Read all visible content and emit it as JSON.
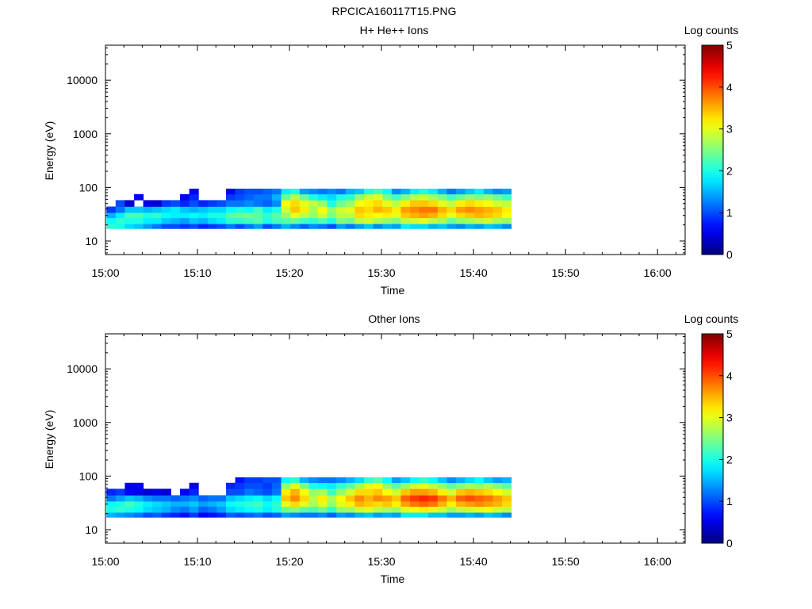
{
  "figure_title": "RPCICA160117T15.PNG",
  "colors": {
    "axis": "#000000",
    "background": "#ffffff"
  },
  "chart_data": [
    {
      "type": "heatmap",
      "title": "H+ He++ Ions",
      "xlabel": "Time",
      "ylabel": "Energy (eV)",
      "x_ticks": [
        "15:00",
        "15:10",
        "15:20",
        "15:30",
        "15:40",
        "15:50",
        "16:00"
      ],
      "x_range_minutes": [
        0,
        63
      ],
      "y_ticks": [
        "10",
        "100",
        "1000",
        "10000"
      ],
      "ylim": [
        5.6,
        45000
      ],
      "y_scale": "log",
      "colorbar": {
        "label": "Log counts",
        "ticks": [
          "0",
          "1",
          "2",
          "3",
          "4",
          "5"
        ],
        "range": [
          0,
          5
        ],
        "colormap": "jet"
      },
      "columns": [
        {
          "t": 0.2,
          "c": [
            2.1,
            1.9,
            1.5,
            0.9
          ]
        },
        {
          "t": 1.2,
          "c": [
            2.0,
            2.1,
            1.8,
            1.2,
            1.0
          ]
        },
        {
          "t": 2.2,
          "c": [
            1.7,
            2.0,
            2.2,
            1.6,
            0.4
          ]
        },
        {
          "t": 3.2,
          "c": [
            1.6,
            2.0,
            2.2,
            1.6,
            0,
            0.6
          ]
        },
        {
          "t": 4.2,
          "c": [
            1.4,
            1.8,
            2.0,
            1.5,
            0.5
          ]
        },
        {
          "t": 5.2,
          "c": [
            1.2,
            1.8,
            2.1,
            1.6,
            0.4
          ]
        },
        {
          "t": 6.2,
          "c": [
            1.0,
            1.6,
            1.9,
            1.7,
            0.9
          ]
        },
        {
          "t": 7.2,
          "c": [
            1.0,
            1.5,
            1.8,
            1.8,
            1.0
          ]
        },
        {
          "t": 8.2,
          "c": [
            0.9,
            1.4,
            1.8,
            1.6,
            0.8,
            0.6
          ]
        },
        {
          "t": 9.2,
          "c": [
            1.0,
            1.6,
            1.9,
            1.5,
            1.0,
            0.8,
            0.6
          ]
        },
        {
          "t": 10.2,
          "c": [
            0.8,
            1.5,
            1.8,
            1.6,
            0.8
          ]
        },
        {
          "t": 11.2,
          "c": [
            0.9,
            1.7,
            2.0,
            1.7,
            0.9
          ]
        },
        {
          "t": 12.2,
          "c": [
            1.0,
            1.8,
            2.0,
            1.7,
            1.0
          ]
        },
        {
          "t": 13.2,
          "c": [
            1.2,
            2.1,
            2.3,
            1.9,
            1.2,
            0.9,
            0.6
          ]
        },
        {
          "t": 14.2,
          "c": [
            1.0,
            2.1,
            2.4,
            2.0,
            1.2,
            1.0,
            0.9
          ]
        },
        {
          "t": 15.2,
          "c": [
            1.2,
            2.2,
            2.4,
            1.9,
            1.3,
            1.1,
            1.0
          ]
        },
        {
          "t": 16.2,
          "c": [
            1.4,
            2.3,
            2.3,
            2.2,
            1.2,
            1.2,
            1.0
          ]
        },
        {
          "t": 17.2,
          "c": [
            1.0,
            2.0,
            2.1,
            1.8,
            1.1,
            1.2,
            1.1
          ]
        },
        {
          "t": 18.2,
          "c": [
            1.2,
            2.2,
            2.3,
            2.0,
            1.3,
            1.5,
            1.2
          ]
        },
        {
          "t": 19.2,
          "c": [
            1.5,
            2.3,
            2.6,
            2.9,
            3.1,
            2.4,
            1.8
          ]
        },
        {
          "t": 20.2,
          "c": [
            1.3,
            2.4,
            3.0,
            3.4,
            3.3,
            2.8,
            2.0
          ]
        },
        {
          "t": 21.2,
          "c": [
            1.1,
            2.2,
            2.8,
            3.2,
            3.0,
            2.4,
            1.4
          ]
        },
        {
          "t": 22.2,
          "c": [
            1.3,
            2.1,
            2.6,
            2.7,
            2.8,
            2.0,
            1.3
          ]
        },
        {
          "t": 23.2,
          "c": [
            1.2,
            2.3,
            2.9,
            3.1,
            2.6,
            1.8,
            1.2
          ]
        },
        {
          "t": 24.2,
          "c": [
            1.0,
            2.0,
            2.5,
            2.6,
            2.0,
            1.7,
            1.3
          ]
        },
        {
          "t": 25.2,
          "c": [
            1.4,
            2.5,
            2.8,
            2.9,
            2.4,
            2.0,
            1.2
          ]
        },
        {
          "t": 26.2,
          "c": [
            1.2,
            2.4,
            2.8,
            3.0,
            2.6,
            2.1,
            1.5
          ]
        },
        {
          "t": 27.2,
          "c": [
            1.4,
            2.8,
            3.3,
            3.4,
            3.1,
            2.6,
            1.6
          ]
        },
        {
          "t": 28.2,
          "c": [
            1.6,
            2.9,
            3.2,
            3.3,
            3.2,
            2.9,
            2.0
          ]
        },
        {
          "t": 29.2,
          "c": [
            1.3,
            2.7,
            3.1,
            3.5,
            3.3,
            3.0,
            2.2
          ]
        },
        {
          "t": 30.2,
          "c": [
            1.5,
            2.6,
            3.2,
            3.4,
            3.0,
            2.5,
            1.9
          ]
        },
        {
          "t": 31.2,
          "c": [
            1.4,
            2.5,
            3.0,
            3.2,
            2.8,
            2.2,
            1.3
          ]
        },
        {
          "t": 32.2,
          "c": [
            1.8,
            2.8,
            3.4,
            3.6,
            3.2,
            2.5,
            1.5
          ]
        },
        {
          "t": 33.2,
          "c": [
            1.7,
            2.9,
            3.5,
            3.7,
            3.4,
            2.8,
            1.8
          ]
        },
        {
          "t": 34.2,
          "c": [
            1.7,
            3.0,
            3.6,
            3.8,
            3.4,
            2.9,
            2.0
          ]
        },
        {
          "t": 35.2,
          "c": [
            1.5,
            2.8,
            3.5,
            3.8,
            3.3,
            2.7,
            1.8
          ]
        },
        {
          "t": 36.2,
          "c": [
            1.6,
            2.7,
            3.3,
            3.5,
            3.0,
            2.5,
            1.5
          ]
        },
        {
          "t": 37.2,
          "c": [
            1.4,
            2.4,
            3.0,
            3.3,
            2.8,
            2.2,
            1.2
          ]
        },
        {
          "t": 38.2,
          "c": [
            1.3,
            2.6,
            3.3,
            3.6,
            3.2,
            2.4,
            1.4
          ]
        },
        {
          "t": 39.2,
          "c": [
            1.5,
            2.7,
            3.4,
            3.7,
            3.3,
            2.6,
            1.6
          ]
        },
        {
          "t": 40.2,
          "c": [
            1.4,
            2.8,
            3.5,
            3.6,
            3.2,
            2.5,
            1.8
          ]
        },
        {
          "t": 41.2,
          "c": [
            1.6,
            2.9,
            3.4,
            3.5,
            3.1,
            2.6,
            1.5
          ]
        },
        {
          "t": 42.2,
          "c": [
            1.5,
            2.7,
            3.3,
            3.4,
            2.9,
            2.4,
            1.3
          ]
        },
        {
          "t": 43.2,
          "c": [
            1.3,
            2.6,
            3.1,
            3.2,
            2.8,
            2.2,
            1.4
          ]
        }
      ]
    },
    {
      "type": "heatmap",
      "title": "Other Ions",
      "xlabel": "Time",
      "ylabel": "Energy (eV)",
      "x_ticks": [
        "15:00",
        "15:10",
        "15:20",
        "15:30",
        "15:40",
        "15:50",
        "16:00"
      ],
      "x_range_minutes": [
        0,
        63
      ],
      "y_ticks": [
        "10",
        "100",
        "1000",
        "10000"
      ],
      "ylim": [
        5.6,
        45000
      ],
      "y_scale": "log",
      "colorbar": {
        "label": "Log counts",
        "ticks": [
          "0",
          "1",
          "2",
          "3",
          "4",
          "5"
        ],
        "range": [
          0,
          5
        ],
        "colormap": "jet"
      },
      "columns": [
        {
          "t": 0.2,
          "c": [
            1.5,
            2.0,
            1.9,
            1.2,
            0.8
          ]
        },
        {
          "t": 1.2,
          "c": [
            1.4,
            2.1,
            2.0,
            1.4,
            0.9
          ]
        },
        {
          "t": 2.2,
          "c": [
            1.3,
            2.0,
            2.2,
            1.6,
            0.6,
            0.5
          ]
        },
        {
          "t": 3.2,
          "c": [
            1.2,
            1.9,
            2.0,
            1.5,
            0.5,
            0.6
          ]
        },
        {
          "t": 4.2,
          "c": [
            1.0,
            1.7,
            1.8,
            1.3,
            0.4
          ]
        },
        {
          "t": 5.2,
          "c": [
            1.1,
            1.6,
            1.7,
            1.2,
            0.5
          ]
        },
        {
          "t": 6.2,
          "c": [
            0.9,
            1.5,
            1.6,
            1.2,
            0.4
          ]
        },
        {
          "t": 7.2,
          "c": [
            0.8,
            1.3,
            1.5,
            1.1
          ]
        },
        {
          "t": 8.2,
          "c": [
            0.7,
            1.2,
            1.5,
            1.2,
            0.6
          ]
        },
        {
          "t": 9.2,
          "c": [
            0.9,
            1.4,
            1.6,
            1.3,
            0.8,
            0.5
          ]
        },
        {
          "t": 10.2,
          "c": [
            0.6,
            1.1,
            1.4,
            1.1
          ]
        },
        {
          "t": 11.2,
          "c": [
            0.7,
            1.2,
            1.5,
            1.2
          ]
        },
        {
          "t": 12.2,
          "c": [
            0.8,
            1.4,
            1.6,
            1.2
          ]
        },
        {
          "t": 13.2,
          "c": [
            1.1,
            1.7,
            1.9,
            1.6,
            1.0,
            0.8
          ]
        },
        {
          "t": 14.2,
          "c": [
            1.0,
            1.8,
            2.0,
            1.7,
            1.0,
            0.9,
            0.7
          ]
        },
        {
          "t": 15.2,
          "c": [
            1.1,
            1.9,
            2.1,
            1.8,
            1.2,
            1.0,
            0.9
          ]
        },
        {
          "t": 16.2,
          "c": [
            1.2,
            2.0,
            2.2,
            1.9,
            1.1,
            1.0,
            0.9
          ]
        },
        {
          "t": 17.2,
          "c": [
            1.0,
            1.8,
            1.9,
            1.7,
            1.0,
            0.9,
            1.0
          ]
        },
        {
          "t": 18.2,
          "c": [
            1.1,
            2.0,
            2.1,
            1.9,
            1.2,
            1.1,
            1.0
          ]
        },
        {
          "t": 19.2,
          "c": [
            1.4,
            2.4,
            3.0,
            3.4,
            3.2,
            2.6,
            1.9
          ]
        },
        {
          "t": 20.2,
          "c": [
            1.3,
            2.5,
            3.3,
            3.7,
            3.5,
            3.0,
            2.1
          ]
        },
        {
          "t": 21.2,
          "c": [
            1.2,
            2.3,
            3.0,
            3.3,
            3.1,
            2.5,
            1.5
          ]
        },
        {
          "t": 22.2,
          "c": [
            1.2,
            2.2,
            2.7,
            2.8,
            2.6,
            2.0,
            1.3
          ]
        },
        {
          "t": 23.2,
          "c": [
            1.3,
            2.4,
            3.0,
            3.2,
            2.7,
            1.9,
            1.2
          ]
        },
        {
          "t": 24.2,
          "c": [
            1.1,
            2.1,
            2.6,
            2.7,
            2.2,
            1.8,
            1.2
          ]
        },
        {
          "t": 25.2,
          "c": [
            1.4,
            2.6,
            3.0,
            3.1,
            2.6,
            2.1,
            1.3
          ]
        },
        {
          "t": 26.2,
          "c": [
            1.3,
            2.6,
            3.2,
            3.4,
            2.9,
            2.3,
            1.5
          ]
        },
        {
          "t": 27.2,
          "c": [
            1.5,
            2.9,
            3.5,
            3.7,
            3.3,
            2.7,
            1.7
          ]
        },
        {
          "t": 28.2,
          "c": [
            1.6,
            3.0,
            3.4,
            3.5,
            3.3,
            3.0,
            2.1
          ]
        },
        {
          "t": 29.2,
          "c": [
            1.4,
            2.8,
            3.3,
            3.7,
            3.4,
            3.1,
            2.3
          ]
        },
        {
          "t": 30.2,
          "c": [
            1.5,
            2.7,
            3.4,
            3.6,
            3.1,
            2.6,
            1.9
          ]
        },
        {
          "t": 31.2,
          "c": [
            1.4,
            2.6,
            3.2,
            3.4,
            2.9,
            2.3,
            1.4
          ]
        },
        {
          "t": 32.2,
          "c": [
            1.8,
            3.0,
            3.6,
            3.9,
            3.4,
            2.6,
            1.6
          ]
        },
        {
          "t": 33.2,
          "c": [
            1.8,
            3.1,
            3.8,
            4.1,
            3.6,
            2.9,
            1.9
          ]
        },
        {
          "t": 34.2,
          "c": [
            1.8,
            3.2,
            3.9,
            4.2,
            3.6,
            3.0,
            2.1
          ]
        },
        {
          "t": 35.2,
          "c": [
            1.6,
            3.0,
            3.8,
            4.1,
            3.5,
            2.8,
            1.9
          ]
        },
        {
          "t": 36.2,
          "c": [
            1.6,
            2.9,
            3.5,
            3.8,
            3.2,
            2.6,
            1.6
          ]
        },
        {
          "t": 37.2,
          "c": [
            1.4,
            2.6,
            3.2,
            3.5,
            2.9,
            2.3,
            1.3
          ]
        },
        {
          "t": 38.2,
          "c": [
            1.4,
            2.8,
            3.5,
            3.9,
            3.4,
            2.5,
            1.5
          ]
        },
        {
          "t": 39.2,
          "c": [
            1.5,
            2.9,
            3.6,
            4.0,
            3.5,
            2.7,
            1.7
          ]
        },
        {
          "t": 40.2,
          "c": [
            1.4,
            3.0,
            3.7,
            3.9,
            3.4,
            2.6,
            1.9
          ]
        },
        {
          "t": 41.2,
          "c": [
            1.6,
            3.1,
            3.6,
            3.8,
            3.3,
            2.7,
            1.6
          ]
        },
        {
          "t": 42.2,
          "c": [
            1.5,
            2.9,
            3.5,
            3.6,
            3.1,
            2.5,
            1.4
          ]
        },
        {
          "t": 43.2,
          "c": [
            1.3,
            2.8,
            3.3,
            3.4,
            2.9,
            2.3,
            1.5
          ]
        }
      ]
    }
  ]
}
